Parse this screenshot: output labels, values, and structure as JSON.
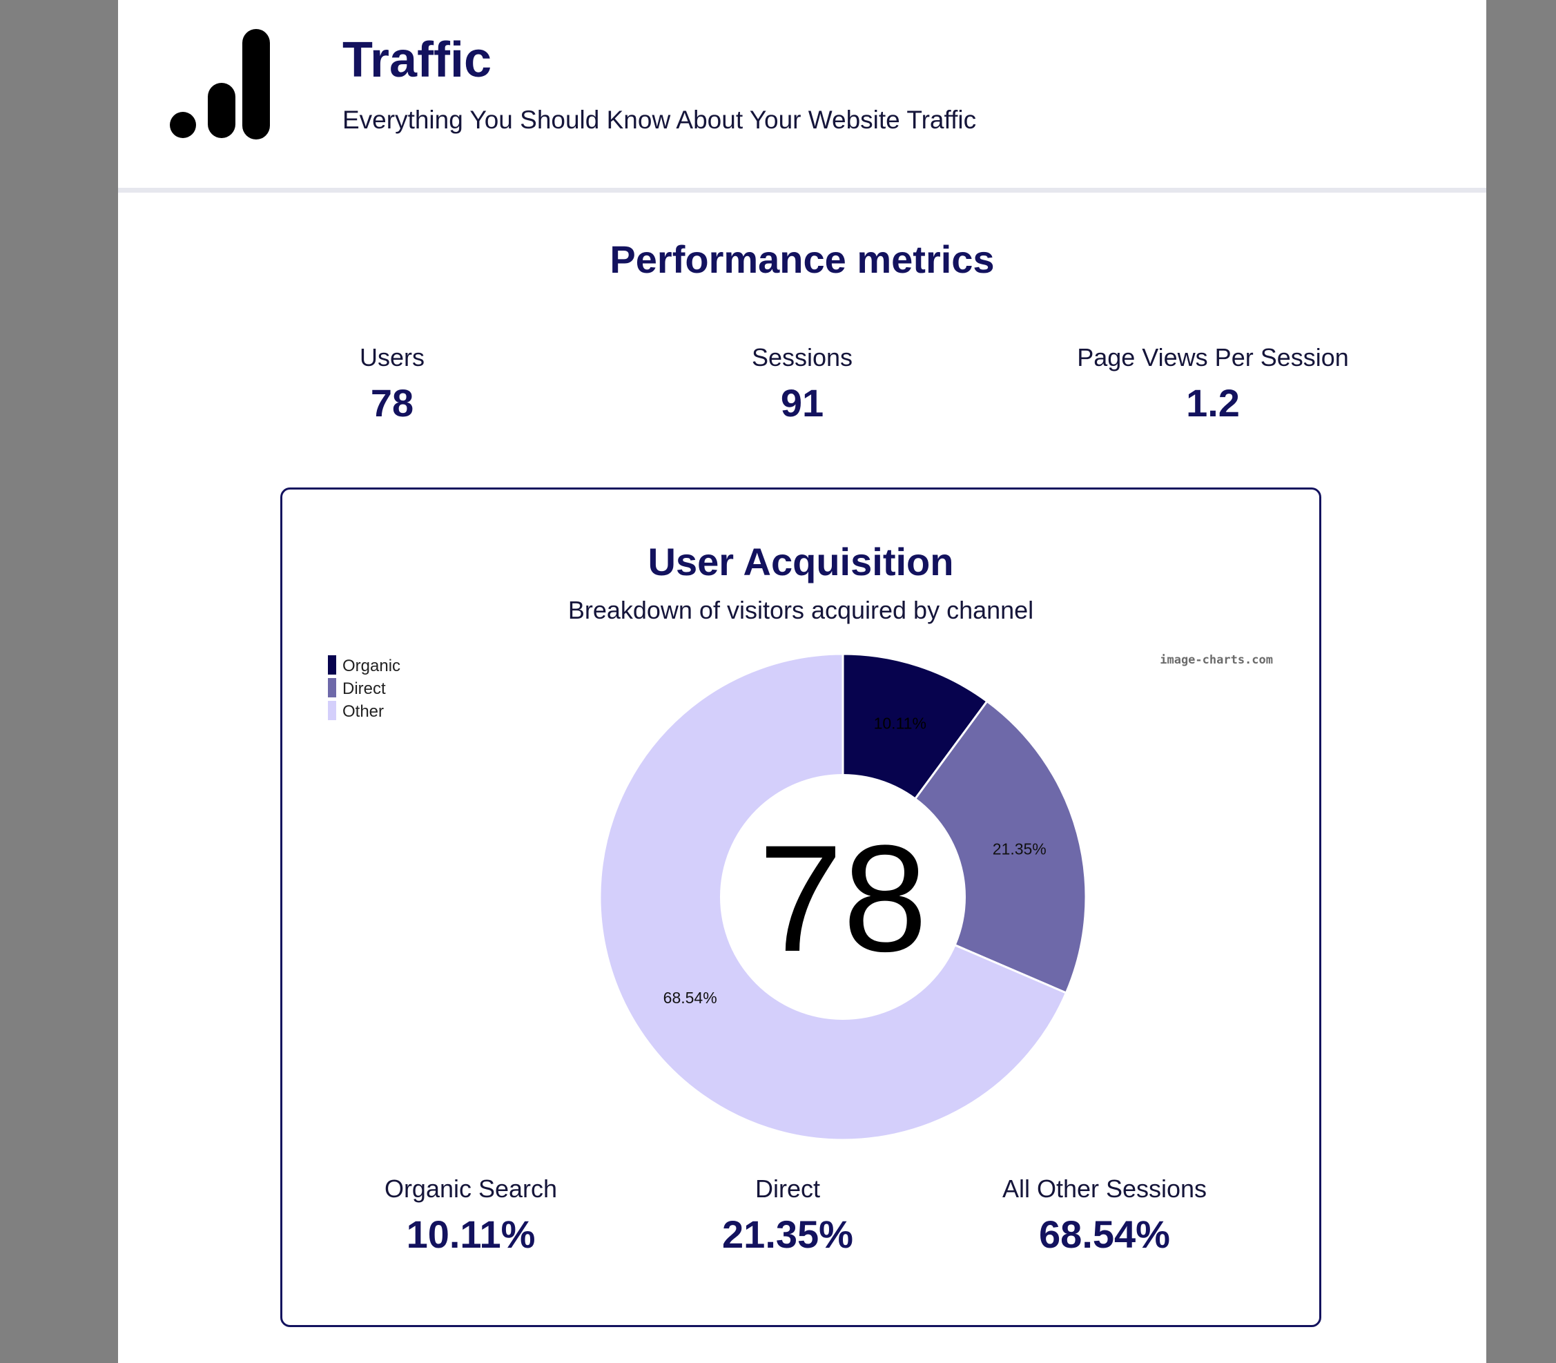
{
  "header": {
    "title": "Traffic",
    "subtitle": "Everything You Should Know About Your Website Traffic",
    "logo_icon": "bar-chart-icon"
  },
  "performance": {
    "title": "Performance metrics",
    "metrics": [
      {
        "label": "Users",
        "value": "78"
      },
      {
        "label": "Sessions",
        "value": "91"
      },
      {
        "label": "Page Views Per Session",
        "value": "1.2"
      }
    ]
  },
  "acquisition": {
    "title": "User Acquisition",
    "subtitle": "Breakdown of visitors acquired by channel",
    "watermark": "image-charts.com",
    "center_label": "78",
    "metrics": [
      {
        "label": "Organic Search",
        "value": "10.11%"
      },
      {
        "label": "Direct",
        "value": "21.35%"
      },
      {
        "label": "All Other Sessions",
        "value": "68.54%"
      }
    ]
  },
  "colors": {
    "primary": "#13125e",
    "organic": "#07034e",
    "direct": "#6e69a9",
    "other": "#d4cffb"
  },
  "chart_data": {
    "type": "pie",
    "categories": [
      "Organic",
      "Direct",
      "Other"
    ],
    "values": [
      10.11,
      21.35,
      68.54
    ],
    "data_labels": [
      "10.11%",
      "21.35%",
      "68.54%"
    ],
    "colors": [
      "#07034e",
      "#6e69a9",
      "#d4cffb"
    ],
    "legend": "top-left"
  }
}
